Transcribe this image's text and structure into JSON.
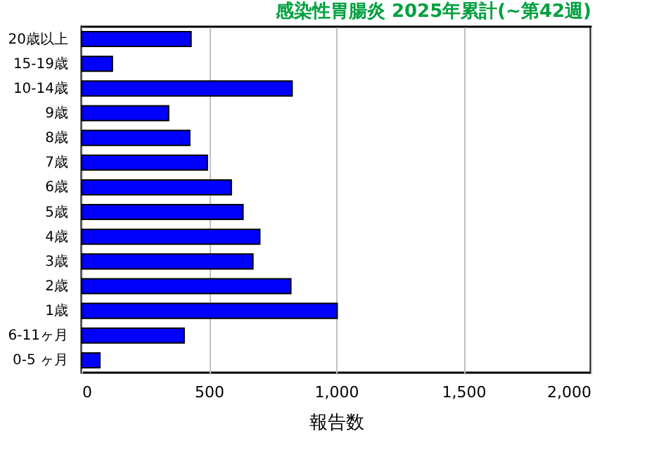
{
  "chart_data": {
    "type": "bar",
    "orientation": "horizontal",
    "title": "感染性胃腸炎 2025年累計(~第42週)",
    "xlabel": "報告数",
    "categories": [
      "20歳以上",
      "15-19歳",
      "10-14歳",
      "9歳",
      "8歳",
      "7歳",
      "6歳",
      "5歳",
      "4歳",
      "3歳",
      "2歳",
      "1歳",
      "6-11ヶ月",
      "0-5 ヶ月"
    ],
    "values": [
      430,
      121,
      827,
      342,
      425,
      494,
      588,
      634,
      700,
      673,
      822,
      1004,
      403,
      72
    ],
    "color": "#0000ff",
    "xlim": [
      0,
      2000
    ],
    "xticks": [
      0,
      500,
      {
        "value": 1000,
        "label": "1,000"
      },
      {
        "value": 1500,
        "label": "1,500"
      },
      {
        "value": 2000,
        "label": "2,000"
      }
    ],
    "grid": "x"
  }
}
